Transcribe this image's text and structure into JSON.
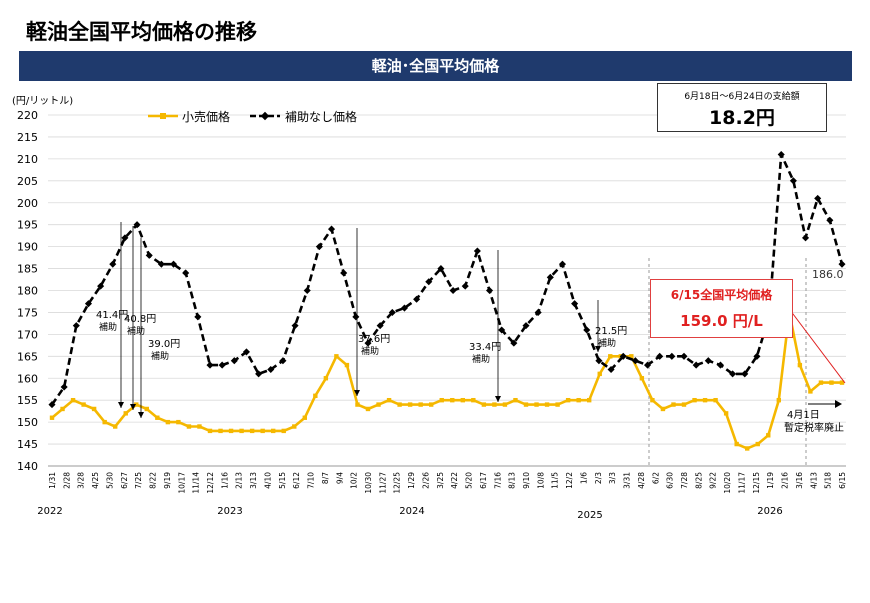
{
  "page_title": "軽油全国平均価格の推移",
  "banner_title": "軽油･全国平均価格",
  "y_unit": "(円/リットル)",
  "info_box": {
    "caption": "6月18日～6月24日の支給額",
    "amount": "18.2円"
  },
  "callout": {
    "line1": "6/15全国平均価格",
    "line2": "159.0 円/L"
  },
  "colors": {
    "retail": "#f5b800",
    "no_subsidy": "#000000",
    "banner": "#1f3a6d",
    "callout": "#e02020"
  },
  "chart_data": {
    "type": "line",
    "ylim": [
      140,
      220
    ],
    "y_ticks": [
      "140",
      "145",
      "150",
      "155",
      "160",
      "165",
      "170",
      "175",
      "180",
      "185",
      "190",
      "195",
      "200",
      "205",
      "210",
      "215",
      "220"
    ],
    "x_tick_labels": [
      "1/31",
      "2/28",
      "3/28",
      "4/25",
      "5/30",
      "6/27",
      "7/25",
      "8/22",
      "9/19",
      "10/17",
      "11/14",
      "12/12",
      "1/16",
      "2/13",
      "3/13",
      "4/10",
      "5/15",
      "6/12",
      "7/10",
      "8/7",
      "9/4",
      "10/2",
      "10/30",
      "11/27",
      "12/25",
      "1/29",
      "2/26",
      "3/25",
      "4/22",
      "5/20",
      "6/17",
      "7/16",
      "8/13",
      "9/10",
      "10/8",
      "11/5",
      "12/2",
      "1/6",
      "2/3",
      "3/3",
      "3/31",
      "4/28",
      "6/2",
      "6/30",
      "7/28",
      "8/25",
      "9/22",
      "10/20",
      "11/17",
      "12/15",
      "1/19",
      "2/16",
      "3/16",
      "4/13",
      "5/18",
      "6/15"
    ],
    "years": [
      "2022",
      "2023",
      "2024",
      "2025",
      "2026"
    ],
    "legend": {
      "retail": "小売価格",
      "no_subsidy": "補助なし価格"
    },
    "series": [
      {
        "name": "小売価格",
        "values": [
          151,
          153,
          155,
          154,
          153,
          150,
          149,
          152,
          154,
          153,
          151,
          150,
          150,
          149,
          149,
          148,
          148,
          148,
          148,
          148,
          148,
          148,
          148,
          149,
          151,
          156,
          160,
          165,
          163,
          154,
          153,
          154,
          155,
          154,
          154,
          154,
          154,
          155,
          155,
          155,
          155,
          154,
          154,
          154,
          155,
          154,
          154,
          154,
          154,
          155,
          155,
          155,
          161,
          165,
          165,
          165,
          160,
          155,
          153,
          154,
          154,
          155,
          155,
          155,
          152,
          145,
          144,
          145,
          147,
          155,
          175,
          163,
          157,
          159,
          159,
          159
        ]
      },
      {
        "name": "補助なし価格",
        "values": [
          154,
          158,
          172,
          177,
          181,
          186,
          192,
          195,
          188,
          186,
          186,
          184,
          174,
          163,
          163,
          164,
          166,
          161,
          162,
          164,
          172,
          180,
          190,
          194,
          184,
          174,
          168,
          172,
          175,
          176,
          178,
          182,
          185,
          180,
          181,
          189,
          180,
          171,
          168,
          172,
          175,
          183,
          186,
          177,
          171,
          164,
          162,
          165,
          164,
          163,
          165,
          165,
          165,
          163,
          164,
          163,
          161,
          161,
          165,
          174,
          211,
          205,
          192,
          201,
          196,
          186
        ]
      }
    ],
    "annotations": [
      {
        "label": "41.4円",
        "sub": "補助",
        "x_index": 6
      },
      {
        "label": "40.8円",
        "sub": "補助",
        "x_index": 7
      },
      {
        "label": "39.0円",
        "sub": "補助",
        "x_index": 8
      },
      {
        "label": "37.6円",
        "sub": "補助",
        "x_index": 22
      },
      {
        "label": "33.4円",
        "sub": "補助",
        "x_index": 35
      },
      {
        "label": "21.5円",
        "sub": "補助",
        "x_index": 42
      }
    ],
    "end_label": "186.0",
    "abolition_note": {
      "line1": "4月1日",
      "line2": "暫定税率廃止"
    }
  }
}
